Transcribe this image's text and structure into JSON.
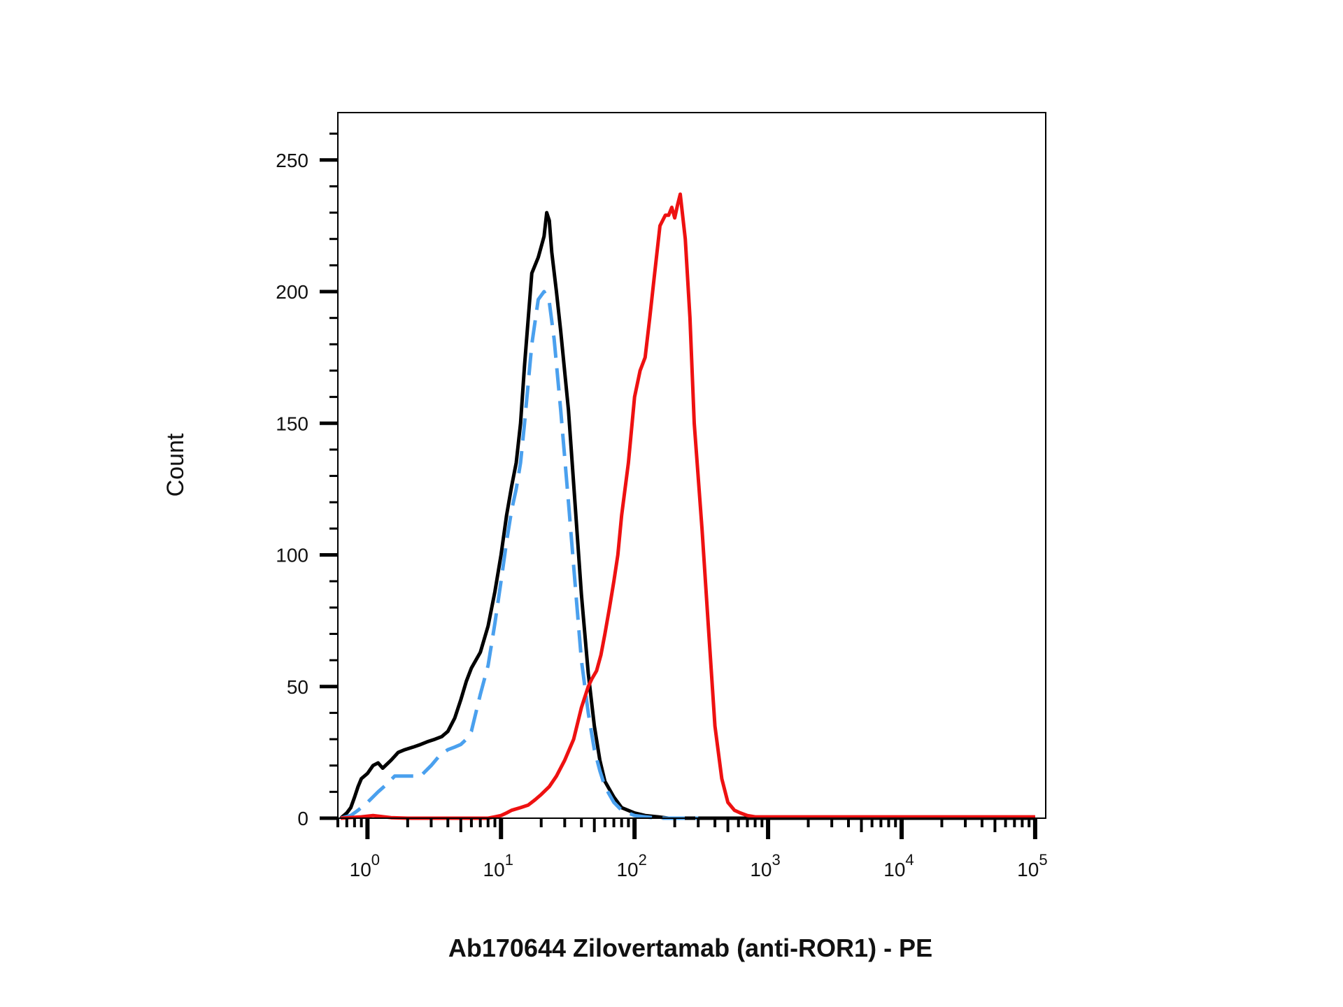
{
  "chart_data": {
    "type": "line",
    "title": "",
    "xlabel": "Ab170644 Zilovertamab (anti-ROR1) - PE",
    "ylabel": "Count",
    "x_scale": "log",
    "xlim": [
      0.6,
      120000
    ],
    "ylim": [
      0,
      268
    ],
    "x_ticks": [
      {
        "value": 1,
        "base": "10",
        "exp": "0"
      },
      {
        "value": 10,
        "base": "10",
        "exp": "1"
      },
      {
        "value": 100,
        "base": "10",
        "exp": "2"
      },
      {
        "value": 1000,
        "base": "10",
        "exp": "3"
      },
      {
        "value": 10000,
        "base": "10",
        "exp": "4"
      },
      {
        "value": 100000,
        "base": "10",
        "exp": "5"
      }
    ],
    "y_ticks": [
      {
        "value": 0,
        "label": "0"
      },
      {
        "value": 50,
        "label": "50"
      },
      {
        "value": 100,
        "label": "100"
      },
      {
        "value": 150,
        "label": "150"
      },
      {
        "value": 200,
        "label": "200"
      },
      {
        "value": 250,
        "label": "250"
      }
    ],
    "grid": false,
    "legend": "none",
    "series": [
      {
        "color": "#000000",
        "dash": "solid",
        "x": [
          0.63,
          0.7,
          0.75,
          0.8,
          0.85,
          0.9,
          1.0,
          1.1,
          1.2,
          1.3,
          1.5,
          1.7,
          1.9,
          2.2,
          2.5,
          2.8,
          3.2,
          3.6,
          4.0,
          4.5,
          5.0,
          5.5,
          6.0,
          7.0,
          8.0,
          9.0,
          10.0,
          11.0,
          12.0,
          13.0,
          14.0,
          15.0,
          17.0,
          19.0,
          21.0,
          22.0,
          23.0,
          24.0,
          26.0,
          28.0,
          32.0,
          36.0,
          40.0,
          45.0,
          50.0,
          55.0,
          60.0,
          70.0,
          80.0,
          100.0,
          120.0,
          150.0,
          180.0,
          220.0,
          300.0,
          500.0,
          1000.0,
          100000.0
        ],
        "y": [
          0,
          2,
          4,
          8,
          12,
          15,
          17,
          20,
          21,
          19,
          22,
          25,
          26,
          27,
          28,
          29,
          30,
          31,
          33,
          38,
          45,
          52,
          57,
          63,
          73,
          86,
          100,
          115,
          126,
          135,
          150,
          172,
          207,
          213,
          221,
          230,
          227,
          215,
          200,
          185,
          155,
          118,
          85,
          55,
          35,
          22,
          14,
          8,
          4,
          2,
          1,
          0.5,
          0,
          0,
          0,
          0,
          0,
          0
        ]
      },
      {
        "color": "#4aa0ee",
        "dash": "dashed",
        "x": [
          0.63,
          0.75,
          0.85,
          1.0,
          1.2,
          1.4,
          1.6,
          2.0,
          2.5,
          3.0,
          3.5,
          4.0,
          4.5,
          5.0,
          5.5,
          6.0,
          7.0,
          8.0,
          9.0,
          10.0,
          11.0,
          12.0,
          13.0,
          14.0,
          15.0,
          17.0,
          19.0,
          21.0,
          23.0,
          25.0,
          28.0,
          32.0,
          36.0,
          40.0,
          45.0,
          50.0,
          55.0,
          60.0,
          70.0,
          80.0,
          100.0,
          120.0,
          150.0,
          200.0,
          300.0
        ],
        "y": [
          0,
          1,
          3,
          6,
          10,
          13,
          16,
          16,
          16,
          20,
          24,
          26,
          27,
          28,
          30,
          33,
          47,
          58,
          74,
          90,
          105,
          117,
          125,
          135,
          150,
          180,
          197,
          200,
          196,
          182,
          155,
          120,
          88,
          60,
          40,
          26,
          18,
          12,
          6,
          3,
          1,
          0.5,
          0,
          0,
          0
        ]
      },
      {
        "color": "#ee1111",
        "dash": "solid",
        "x": [
          0.63,
          0.9,
          1.1,
          1.5,
          2.0,
          5.0,
          8.0,
          9.0,
          10.0,
          11.0,
          12.0,
          14.0,
          16.0,
          18.0,
          20.0,
          23.0,
          26.0,
          30.0,
          35.0,
          40.0,
          45.0,
          48.0,
          52.0,
          56.0,
          60.0,
          65.0,
          70.0,
          75.0,
          80.0,
          90.0,
          100.0,
          110.0,
          120.0,
          130.0,
          140.0,
          155.0,
          170.0,
          180.0,
          190.0,
          200.0,
          210.0,
          220.0,
          240.0,
          260.0,
          280.0,
          320.0,
          360.0,
          400.0,
          450.0,
          500.0,
          560.0,
          620.0,
          700.0,
          800.0,
          1000.0,
          2000.0,
          5000.0,
          10000.0,
          100000.0
        ],
        "y": [
          0,
          0.5,
          1,
          0.2,
          0,
          0,
          0,
          0.5,
          1,
          2,
          3,
          4,
          5,
          7,
          9,
          12,
          16,
          22,
          30,
          42,
          50,
          53,
          56,
          62,
          70,
          80,
          90,
          100,
          115,
          135,
          160,
          170,
          175,
          190,
          205,
          225,
          229,
          229,
          232,
          228,
          233,
          237,
          220,
          190,
          150,
          110,
          70,
          35,
          15,
          6,
          3,
          2,
          1,
          0.5,
          0.5,
          0.5,
          0.5,
          0.5,
          0.5
        ]
      }
    ]
  }
}
